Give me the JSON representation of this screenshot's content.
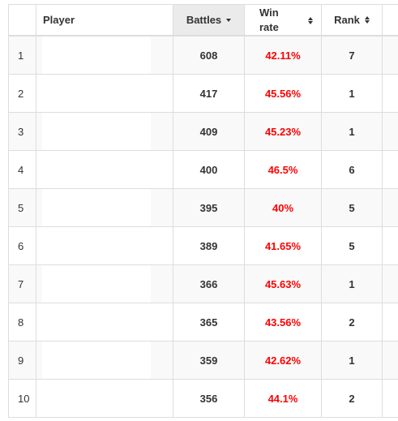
{
  "headers": {
    "index": "",
    "player": "Player",
    "battles": "Battles",
    "win_rate": "Win rate",
    "rank": "Rank"
  },
  "sort": {
    "active_column": "battles",
    "direction": "desc"
  },
  "colors": {
    "win_rate_text": "#ff0000",
    "active_header_bg": "#ebebeb",
    "striped_row_bg": "#f9f9f9"
  },
  "rows": [
    {
      "index": "1",
      "player": "",
      "battles": "608",
      "win_rate": "42.11%",
      "rank": "7"
    },
    {
      "index": "2",
      "player": "",
      "battles": "417",
      "win_rate": "45.56%",
      "rank": "1"
    },
    {
      "index": "3",
      "player": "",
      "battles": "409",
      "win_rate": "45.23%",
      "rank": "1"
    },
    {
      "index": "4",
      "player": "",
      "battles": "400",
      "win_rate": "46.5%",
      "rank": "6"
    },
    {
      "index": "5",
      "player": "",
      "battles": "395",
      "win_rate": "40%",
      "rank": "5"
    },
    {
      "index": "6",
      "player": "",
      "battles": "389",
      "win_rate": "41.65%",
      "rank": "5"
    },
    {
      "index": "7",
      "player": "",
      "battles": "366",
      "win_rate": "45.63%",
      "rank": "1"
    },
    {
      "index": "8",
      "player": "",
      "battles": "365",
      "win_rate": "43.56%",
      "rank": "2"
    },
    {
      "index": "9",
      "player": "",
      "battles": "359",
      "win_rate": "42.62%",
      "rank": "1"
    },
    {
      "index": "10",
      "player": "",
      "battles": "356",
      "win_rate": "44.1%",
      "rank": "2"
    }
  ]
}
